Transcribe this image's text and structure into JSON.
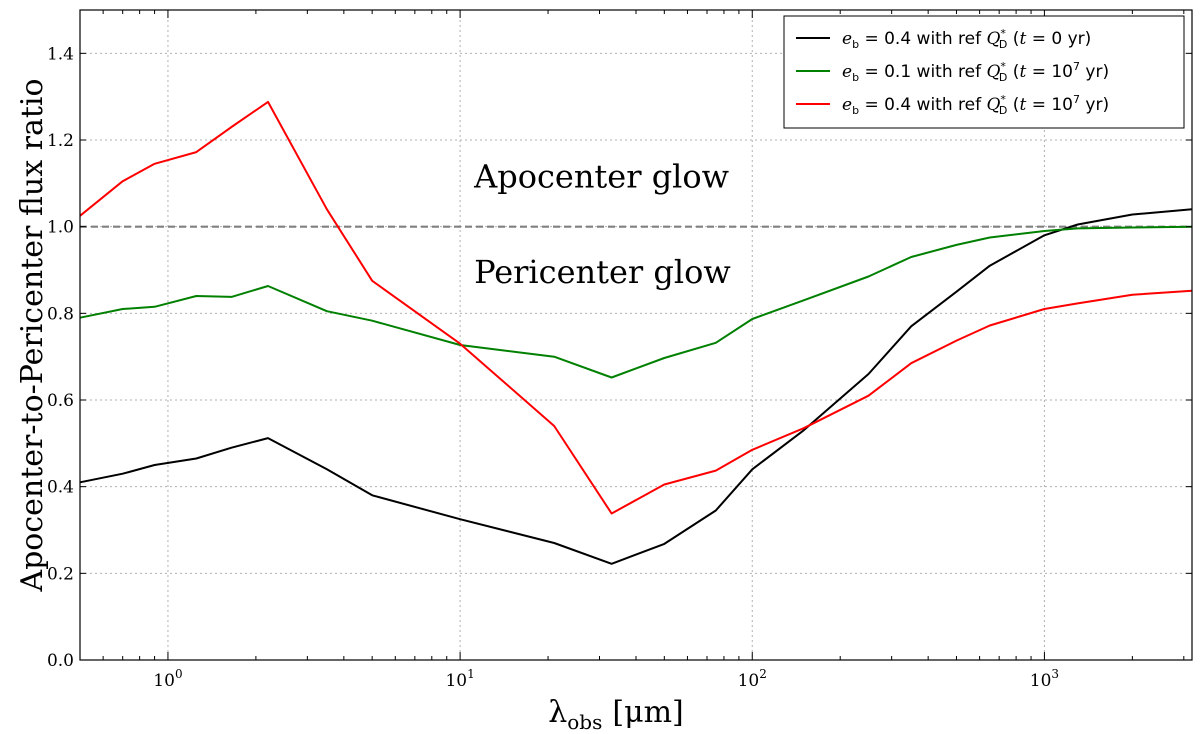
{
  "chart_data": {
    "type": "line",
    "x_scale": "log",
    "xlim": [
      0.5,
      3200
    ],
    "ylim": [
      0.0,
      1.5
    ],
    "xlabel": "λobs [μm]",
    "xlabel_main": "λ",
    "xlabel_sub": "obs",
    "xlabel_unit": "[μm]",
    "ylabel": "Apocenter-to-Pericenter flux ratio",
    "grid": true,
    "legend_position": "top-right",
    "x_ticks": [
      {
        "value": 1,
        "base": "10",
        "exp": "0"
      },
      {
        "value": 10,
        "base": "10",
        "exp": "1"
      },
      {
        "value": 100,
        "base": "10",
        "exp": "2"
      },
      {
        "value": 1000,
        "base": "10",
        "exp": "3"
      }
    ],
    "y_ticks": [
      {
        "value": 0.0,
        "label": "0.0"
      },
      {
        "value": 0.2,
        "label": "0.2"
      },
      {
        "value": 0.4,
        "label": "0.4"
      },
      {
        "value": 0.6,
        "label": "0.6"
      },
      {
        "value": 0.8,
        "label": "0.8"
      },
      {
        "value": 1.0,
        "label": "1.0"
      },
      {
        "value": 1.2,
        "label": "1.2"
      },
      {
        "value": 1.4,
        "label": "1.4"
      }
    ],
    "reference_line": {
      "y": 1.0,
      "color": "#808080"
    },
    "annotations": [
      {
        "text": "Apocenter glow",
        "x": 10,
        "y": 1.09
      },
      {
        "text": "Pericenter glow",
        "x": 10,
        "y": 0.87
      }
    ],
    "series": [
      {
        "color": "#000000",
        "legend": {
          "eb_val": "0.4",
          "ref": "with ref",
          "t_label": "t = 0 yr"
        },
        "x": [
          0.5,
          0.7,
          0.9,
          1.25,
          1.65,
          2.2,
          3.5,
          5,
          10,
          21,
          33,
          50,
          75,
          100,
          150,
          250,
          350,
          500,
          650,
          1000,
          1300,
          2000,
          3200
        ],
        "y": [
          0.41,
          0.43,
          0.45,
          0.465,
          0.49,
          0.512,
          0.44,
          0.38,
          0.325,
          0.27,
          0.222,
          0.268,
          0.345,
          0.44,
          0.53,
          0.66,
          0.77,
          0.85,
          0.91,
          0.98,
          1.005,
          1.028,
          1.04
        ]
      },
      {
        "color": "#008000",
        "legend": {
          "eb_val": "0.1",
          "ref": "with ref",
          "t_label": "t = 10^7 yr"
        },
        "x": [
          0.5,
          0.7,
          0.9,
          1.25,
          1.65,
          2.2,
          3.5,
          5,
          10,
          21,
          33,
          50,
          75,
          100,
          150,
          250,
          350,
          500,
          650,
          1000,
          1300,
          2000,
          3200
        ],
        "y": [
          0.79,
          0.81,
          0.815,
          0.84,
          0.838,
          0.863,
          0.805,
          0.783,
          0.727,
          0.7,
          0.652,
          0.697,
          0.732,
          0.787,
          0.83,
          0.885,
          0.93,
          0.958,
          0.975,
          0.99,
          0.996,
          0.998,
          1.0
        ]
      },
      {
        "color": "#ff0000",
        "legend": {
          "eb_val": "0.4",
          "ref": "with ref",
          "t_label": "t = 10^7 yr"
        },
        "x": [
          0.5,
          0.7,
          0.9,
          1.25,
          1.65,
          2.2,
          3.5,
          5,
          10,
          21,
          33,
          50,
          75,
          100,
          150,
          250,
          350,
          500,
          650,
          1000,
          1300,
          2000,
          3200
        ],
        "y": [
          1.025,
          1.105,
          1.145,
          1.172,
          1.23,
          1.288,
          1.04,
          0.875,
          0.73,
          0.54,
          0.338,
          0.405,
          0.437,
          0.485,
          0.535,
          0.61,
          0.685,
          0.737,
          0.772,
          0.81,
          0.823,
          0.843,
          0.852
        ]
      }
    ]
  }
}
